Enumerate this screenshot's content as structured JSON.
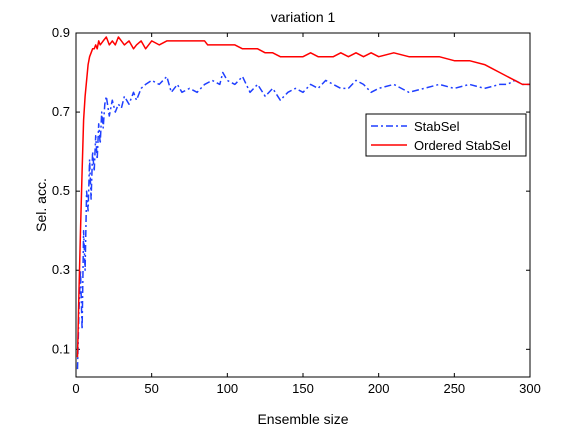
{
  "chart_data": {
    "type": "line",
    "title": "variation 1",
    "xlabel": "Ensemble size",
    "ylabel": "Sel. acc.",
    "xlim": [
      0,
      300
    ],
    "ylim": [
      0.03,
      0.9
    ],
    "xticks": [
      0,
      50,
      100,
      150,
      200,
      250,
      300
    ],
    "xtick_labels": [
      "0",
      "50",
      "100",
      "150",
      "200",
      "250",
      "300"
    ],
    "yticks": [
      0.1,
      0.3,
      0.5,
      0.7,
      0.9
    ],
    "ytick_labels": [
      "0.1",
      "0.3",
      "0.5",
      "0.7",
      "0.9"
    ],
    "grid": false,
    "legend_position": "upper-right",
    "series": [
      {
        "name": "StabSel",
        "color": "#1f3fff",
        "style": "dash-dot",
        "x": [
          1,
          2,
          3,
          4,
          5,
          6,
          7,
          8,
          9,
          10,
          11,
          12,
          13,
          14,
          15,
          16,
          17,
          18,
          19,
          20,
          22,
          24,
          26,
          28,
          30,
          32,
          35,
          38,
          40,
          43,
          46,
          50,
          55,
          60,
          63,
          67,
          70,
          75,
          80,
          85,
          90,
          95,
          97,
          100,
          105,
          110,
          115,
          120,
          125,
          130,
          135,
          140,
          145,
          150,
          155,
          160,
          165,
          170,
          175,
          180,
          185,
          190,
          195,
          200,
          210,
          220,
          230,
          240,
          250,
          260,
          270,
          280,
          285,
          290,
          295,
          300
        ],
        "y": [
          0.05,
          0.2,
          0.3,
          0.15,
          0.4,
          0.3,
          0.5,
          0.45,
          0.58,
          0.48,
          0.6,
          0.55,
          0.64,
          0.58,
          0.67,
          0.62,
          0.7,
          0.66,
          0.72,
          0.74,
          0.69,
          0.73,
          0.7,
          0.72,
          0.71,
          0.74,
          0.72,
          0.75,
          0.73,
          0.76,
          0.77,
          0.78,
          0.77,
          0.79,
          0.75,
          0.77,
          0.75,
          0.76,
          0.75,
          0.77,
          0.78,
          0.77,
          0.8,
          0.78,
          0.77,
          0.79,
          0.75,
          0.77,
          0.74,
          0.76,
          0.73,
          0.75,
          0.76,
          0.75,
          0.77,
          0.76,
          0.78,
          0.77,
          0.76,
          0.76,
          0.78,
          0.77,
          0.75,
          0.76,
          0.77,
          0.75,
          0.76,
          0.77,
          0.76,
          0.77,
          0.76,
          0.77,
          0.77,
          0.78,
          0.77,
          0.77
        ]
      },
      {
        "name": "Ordered StabSel",
        "color": "#ff0000",
        "style": "solid",
        "x": [
          1,
          2,
          3,
          4,
          5,
          6,
          7,
          8,
          9,
          10,
          11,
          12,
          13,
          14,
          15,
          16,
          18,
          20,
          22,
          24,
          26,
          28,
          30,
          32,
          35,
          38,
          40,
          43,
          46,
          50,
          55,
          60,
          65,
          70,
          75,
          80,
          85,
          87,
          90,
          95,
          100,
          105,
          110,
          115,
          120,
          125,
          130,
          135,
          140,
          145,
          150,
          155,
          160,
          165,
          170,
          175,
          180,
          185,
          190,
          195,
          200,
          210,
          220,
          230,
          240,
          250,
          260,
          270,
          275,
          280,
          285,
          290,
          295,
          300
        ],
        "y": [
          0.08,
          0.25,
          0.4,
          0.55,
          0.68,
          0.74,
          0.78,
          0.82,
          0.84,
          0.85,
          0.86,
          0.86,
          0.87,
          0.86,
          0.88,
          0.87,
          0.88,
          0.89,
          0.87,
          0.88,
          0.87,
          0.89,
          0.88,
          0.87,
          0.88,
          0.86,
          0.87,
          0.88,
          0.86,
          0.88,
          0.87,
          0.88,
          0.88,
          0.88,
          0.88,
          0.88,
          0.88,
          0.87,
          0.87,
          0.87,
          0.87,
          0.87,
          0.86,
          0.86,
          0.86,
          0.85,
          0.85,
          0.84,
          0.84,
          0.84,
          0.84,
          0.85,
          0.84,
          0.84,
          0.84,
          0.85,
          0.84,
          0.85,
          0.84,
          0.85,
          0.84,
          0.85,
          0.84,
          0.84,
          0.84,
          0.83,
          0.83,
          0.82,
          0.81,
          0.8,
          0.79,
          0.78,
          0.77,
          0.77
        ]
      }
    ]
  }
}
